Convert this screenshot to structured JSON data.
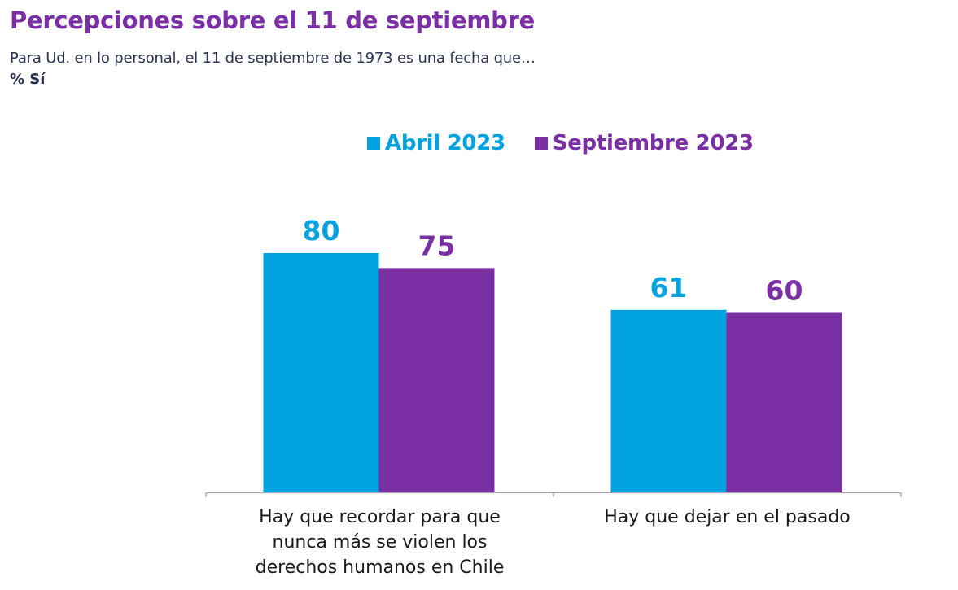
{
  "header": {
    "title": "Percepciones sobre el 11 de septiembre",
    "subtitle": "Para Ud. en lo personal, el 11 de septiembre de 1973 es una fecha que…",
    "unit": "% Sí"
  },
  "chart_data": {
    "type": "bar",
    "title": "Percepciones sobre el 11 de septiembre",
    "subtitle": "Para Ud. en lo personal, el 11 de septiembre de 1973 es una fecha que…",
    "ylabel": "% Sí",
    "xlabel": "",
    "categories": [
      "Hay que recordar para que nunca más se violen los derechos humanos en Chile",
      "Hay que dejar en el pasado"
    ],
    "category_lines": [
      [
        "Hay que recordar para que",
        "nunca más se violen los",
        "derechos humanos en Chile"
      ],
      [
        "Hay que dejar en el pasado"
      ]
    ],
    "series": [
      {
        "name": "Abril 2023",
        "color": "#00a3e0",
        "values": [
          80,
          61
        ]
      },
      {
        "name": "Septiembre 2023",
        "color": "#7b2fa5",
        "values": [
          75,
          60
        ]
      }
    ],
    "ylim": [
      0,
      100
    ],
    "grid": false,
    "legend": "top-center",
    "data_labels": true
  }
}
